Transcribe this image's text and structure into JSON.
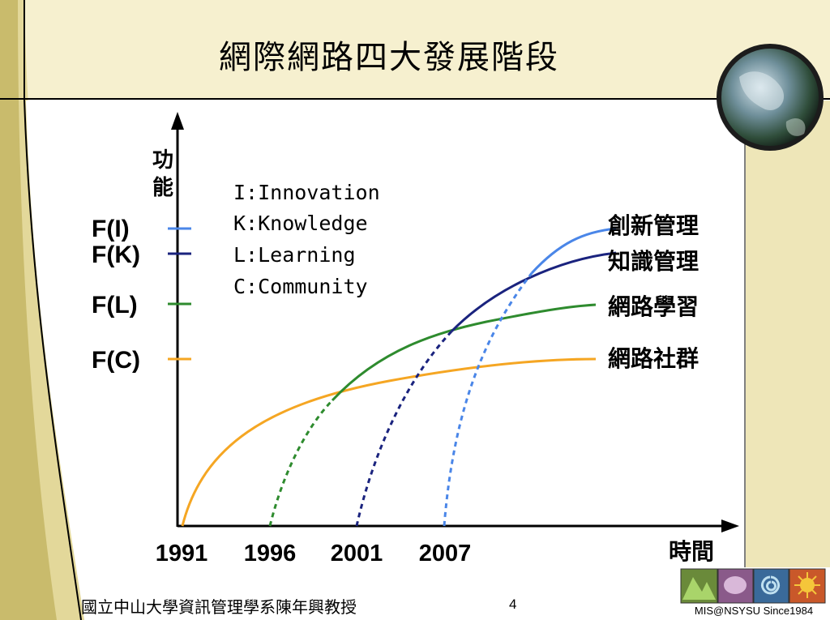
{
  "slide": {
    "title": "網際網路四大發展階段",
    "footer_text": "國立中山大學資訊管理學系陳年興教授",
    "page_number": "4",
    "logo_caption": "MIS@NSYSU Since1984"
  },
  "diagram": {
    "y_axis_label_line1": "功",
    "y_axis_label_line2": "能",
    "x_axis_label": "時間",
    "legend": [
      "I:Innovation",
      "K:Knowledge",
      "L:Learning",
      "C:Community"
    ],
    "levels": [
      {
        "label": "F(I)",
        "color": "#4a86e8",
        "curve_label": "創新管理"
      },
      {
        "label": "F(K)",
        "color": "#1a237e",
        "curve_label": "知識管理"
      },
      {
        "label": "F(L)",
        "color": "#2e8b2e",
        "curve_label": "網路學習"
      },
      {
        "label": "F(C)",
        "color": "#f5a623",
        "curve_label": "網路社群"
      }
    ],
    "years": [
      "1991",
      "1996",
      "2001",
      "2007"
    ]
  }
}
